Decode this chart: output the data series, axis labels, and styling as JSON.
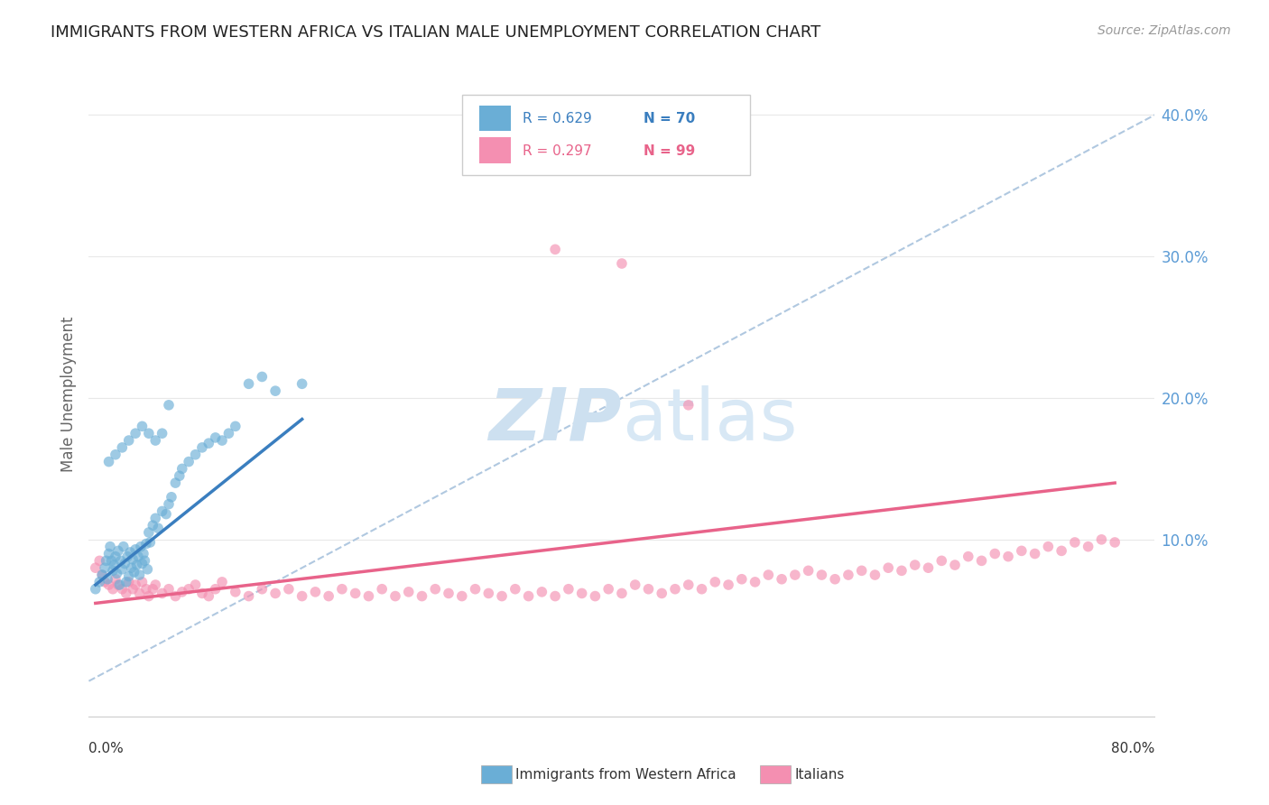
{
  "title": "IMMIGRANTS FROM WESTERN AFRICA VS ITALIAN MALE UNEMPLOYMENT CORRELATION CHART",
  "source": "Source: ZipAtlas.com",
  "ylabel": "Male Unemployment",
  "xlim": [
    0.0,
    0.8
  ],
  "ylim": [
    -0.025,
    0.43
  ],
  "blue_color": "#6aaed6",
  "pink_color": "#f48fb1",
  "blue_line_color": "#3a7ebf",
  "pink_line_color": "#e8638a",
  "dashed_line_color": "#b0c8e0",
  "background_color": "#ffffff",
  "grid_color": "#e8e8e8",
  "watermark_zip_color": "#cde0f0",
  "watermark_atlas_color": "#d8e8f5",
  "blue_scatter_x": [
    0.005,
    0.008,
    0.01,
    0.012,
    0.013,
    0.014,
    0.015,
    0.016,
    0.017,
    0.018,
    0.019,
    0.02,
    0.021,
    0.022,
    0.023,
    0.024,
    0.025,
    0.026,
    0.027,
    0.028,
    0.029,
    0.03,
    0.031,
    0.032,
    0.033,
    0.034,
    0.035,
    0.036,
    0.037,
    0.038,
    0.039,
    0.04,
    0.041,
    0.042,
    0.043,
    0.044,
    0.045,
    0.046,
    0.048,
    0.05,
    0.052,
    0.055,
    0.058,
    0.06,
    0.062,
    0.065,
    0.068,
    0.07,
    0.075,
    0.08,
    0.085,
    0.09,
    0.095,
    0.1,
    0.105,
    0.11,
    0.12,
    0.13,
    0.14,
    0.16,
    0.015,
    0.02,
    0.025,
    0.03,
    0.035,
    0.04,
    0.045,
    0.05,
    0.055,
    0.06
  ],
  "blue_scatter_y": [
    0.065,
    0.07,
    0.075,
    0.08,
    0.085,
    0.072,
    0.09,
    0.095,
    0.085,
    0.078,
    0.082,
    0.088,
    0.076,
    0.092,
    0.068,
    0.085,
    0.079,
    0.095,
    0.083,
    0.07,
    0.088,
    0.074,
    0.091,
    0.08,
    0.086,
    0.077,
    0.093,
    0.082,
    0.088,
    0.075,
    0.095,
    0.083,
    0.09,
    0.085,
    0.097,
    0.079,
    0.105,
    0.098,
    0.11,
    0.115,
    0.108,
    0.12,
    0.118,
    0.125,
    0.13,
    0.14,
    0.145,
    0.15,
    0.155,
    0.16,
    0.165,
    0.168,
    0.172,
    0.17,
    0.175,
    0.18,
    0.21,
    0.215,
    0.205,
    0.21,
    0.155,
    0.16,
    0.165,
    0.17,
    0.175,
    0.18,
    0.175,
    0.17,
    0.175,
    0.195
  ],
  "pink_scatter_x": [
    0.005,
    0.008,
    0.01,
    0.012,
    0.015,
    0.018,
    0.02,
    0.022,
    0.025,
    0.028,
    0.03,
    0.033,
    0.035,
    0.038,
    0.04,
    0.043,
    0.045,
    0.048,
    0.05,
    0.055,
    0.06,
    0.065,
    0.07,
    0.075,
    0.08,
    0.085,
    0.09,
    0.095,
    0.1,
    0.11,
    0.12,
    0.13,
    0.14,
    0.15,
    0.16,
    0.17,
    0.18,
    0.19,
    0.2,
    0.21,
    0.22,
    0.23,
    0.24,
    0.25,
    0.26,
    0.27,
    0.28,
    0.29,
    0.3,
    0.31,
    0.32,
    0.33,
    0.34,
    0.35,
    0.36,
    0.37,
    0.38,
    0.39,
    0.4,
    0.41,
    0.42,
    0.43,
    0.44,
    0.45,
    0.46,
    0.47,
    0.48,
    0.49,
    0.5,
    0.51,
    0.52,
    0.53,
    0.54,
    0.55,
    0.56,
    0.57,
    0.58,
    0.59,
    0.6,
    0.61,
    0.62,
    0.63,
    0.64,
    0.65,
    0.66,
    0.67,
    0.68,
    0.69,
    0.7,
    0.71,
    0.72,
    0.73,
    0.74,
    0.75,
    0.76,
    0.77,
    0.35,
    0.4,
    0.45
  ],
  "pink_scatter_y": [
    0.08,
    0.085,
    0.075,
    0.07,
    0.068,
    0.065,
    0.072,
    0.068,
    0.065,
    0.062,
    0.07,
    0.065,
    0.068,
    0.062,
    0.07,
    0.065,
    0.06,
    0.065,
    0.068,
    0.062,
    0.065,
    0.06,
    0.063,
    0.065,
    0.068,
    0.062,
    0.06,
    0.065,
    0.07,
    0.063,
    0.06,
    0.065,
    0.062,
    0.065,
    0.06,
    0.063,
    0.06,
    0.065,
    0.062,
    0.06,
    0.065,
    0.06,
    0.063,
    0.06,
    0.065,
    0.062,
    0.06,
    0.065,
    0.062,
    0.06,
    0.065,
    0.06,
    0.063,
    0.06,
    0.065,
    0.062,
    0.06,
    0.065,
    0.062,
    0.068,
    0.065,
    0.062,
    0.065,
    0.068,
    0.065,
    0.07,
    0.068,
    0.072,
    0.07,
    0.075,
    0.072,
    0.075,
    0.078,
    0.075,
    0.072,
    0.075,
    0.078,
    0.075,
    0.08,
    0.078,
    0.082,
    0.08,
    0.085,
    0.082,
    0.088,
    0.085,
    0.09,
    0.088,
    0.092,
    0.09,
    0.095,
    0.092,
    0.098,
    0.095,
    0.1,
    0.098,
    0.305,
    0.295,
    0.195
  ],
  "blue_line_x": [
    0.005,
    0.16
  ],
  "blue_line_y_start": 0.068,
  "blue_line_y_end": 0.185,
  "pink_line_x": [
    0.005,
    0.77
  ],
  "pink_line_y_start": 0.055,
  "pink_line_y_end": 0.14,
  "dashed_line_x": [
    0.0,
    0.8
  ],
  "dashed_line_y": [
    0.0,
    0.4
  ]
}
